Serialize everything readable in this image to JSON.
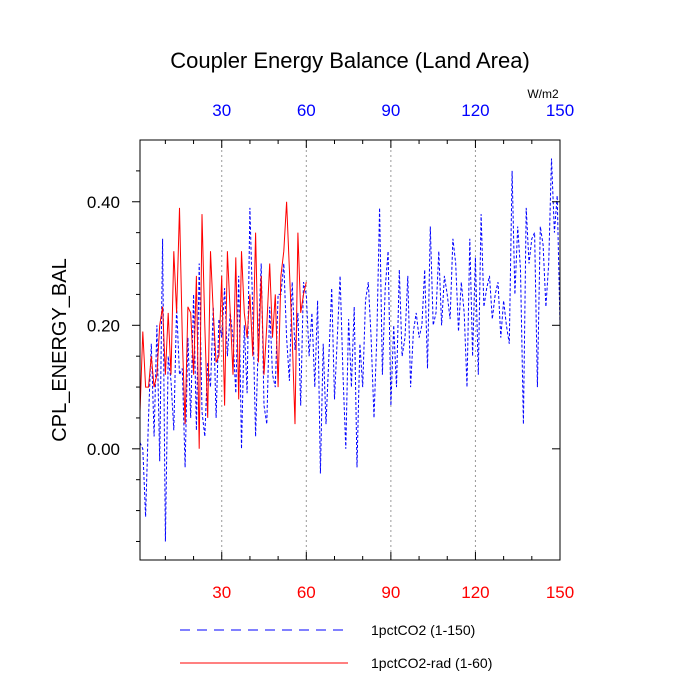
{
  "colors": {
    "series1": "#0000ff",
    "series2": "#ff0000",
    "bottom_ticks": "#ff0000",
    "top_ticks": "#0000ff",
    "grid": "#999999"
  },
  "chart_data": {
    "type": "line",
    "title": "Coupler Energy Balance (Land Area)",
    "xlabel": "",
    "ylabel": "CPL_ENERGY_BAL",
    "top_axis_units": "W/m2",
    "xlim": [
      1,
      150
    ],
    "ylim": [
      -0.18,
      0.5
    ],
    "xticks": [
      30,
      60,
      90,
      120,
      150
    ],
    "xtick_labels": [
      "30",
      "60",
      "90",
      "120",
      "150"
    ],
    "top_xtick_labels": [
      "30",
      "60",
      "90",
      "120",
      "150"
    ],
    "yticks": [
      0.0,
      0.2,
      0.4
    ],
    "ytick_labels": [
      "0.00",
      "0.20",
      "0.40"
    ],
    "grid": "vertical dotted at x ticks",
    "legend_placement": "bottom",
    "series": [
      {
        "name": "1pctCO2 (1-150)",
        "style": "dashed",
        "color": "#0000ff",
        "x": [
          1,
          2,
          3,
          4,
          5,
          6,
          7,
          8,
          9,
          10,
          11,
          12,
          13,
          14,
          15,
          16,
          17,
          18,
          19,
          20,
          21,
          22,
          23,
          24,
          25,
          26,
          27,
          28,
          29,
          30,
          31,
          32,
          33,
          34,
          35,
          36,
          37,
          38,
          39,
          40,
          41,
          42,
          43,
          44,
          45,
          46,
          47,
          48,
          49,
          50,
          51,
          52,
          53,
          54,
          55,
          56,
          57,
          58,
          59,
          60,
          61,
          62,
          63,
          64,
          65,
          66,
          67,
          68,
          69,
          70,
          71,
          72,
          73,
          74,
          75,
          76,
          77,
          78,
          79,
          80,
          81,
          82,
          83,
          84,
          85,
          86,
          87,
          88,
          89,
          90,
          91,
          92,
          93,
          94,
          95,
          96,
          97,
          98,
          99,
          100,
          101,
          102,
          103,
          104,
          105,
          106,
          107,
          108,
          109,
          110,
          111,
          112,
          113,
          114,
          115,
          116,
          117,
          118,
          119,
          120,
          121,
          122,
          123,
          124,
          125,
          126,
          127,
          128,
          129,
          130,
          131,
          132,
          133,
          134,
          135,
          136,
          137,
          138,
          139,
          140,
          141,
          142,
          143,
          144,
          145,
          146,
          147,
          148,
          149,
          150
        ],
        "y": [
          0.01,
          0.0,
          -0.11,
          0.05,
          0.17,
          0.02,
          0.2,
          -0.02,
          0.34,
          -0.15,
          0.15,
          0.11,
          0.03,
          0.23,
          0.12,
          0.13,
          -0.03,
          0.18,
          0.05,
          0.25,
          0.03,
          0.3,
          0.06,
          0.02,
          0.14,
          0.1,
          0.23,
          0.05,
          0.21,
          0.18,
          0.26,
          0.15,
          0.22,
          0.18,
          0.09,
          0.28,
          0.0,
          0.2,
          0.09,
          0.39,
          0.22,
          0.02,
          0.18,
          0.3,
          0.07,
          0.04,
          0.23,
          0.12,
          0.1,
          0.25,
          0.25,
          0.3,
          0.18,
          0.11,
          0.27,
          0.16,
          0.22,
          0.07,
          0.27,
          0.25,
          0.15,
          0.22,
          0.1,
          0.24,
          -0.04,
          0.17,
          0.04,
          0.15,
          0.26,
          0.08,
          0.18,
          0.28,
          0.12,
          0.0,
          0.21,
          0.1,
          0.23,
          -0.03,
          0.17,
          0.1,
          0.24,
          0.27,
          0.18,
          0.05,
          0.18,
          0.39,
          0.12,
          0.26,
          0.32,
          0.07,
          0.2,
          0.1,
          0.29,
          0.15,
          0.18,
          0.28,
          0.1,
          0.19,
          0.22,
          0.18,
          0.2,
          0.29,
          0.13,
          0.36,
          0.2,
          0.22,
          0.32,
          0.2,
          0.28,
          0.25,
          0.21,
          0.34,
          0.3,
          0.19,
          0.27,
          0.22,
          0.1,
          0.34,
          0.15,
          0.31,
          0.12,
          0.38,
          0.23,
          0.26,
          0.28,
          0.21,
          0.25,
          0.27,
          0.18,
          0.24,
          0.2,
          0.17,
          0.45,
          0.25,
          0.36,
          0.29,
          0.04,
          0.39,
          0.3,
          0.34,
          0.35,
          0.1,
          0.36,
          0.33,
          0.23,
          0.3,
          0.47,
          0.35,
          0.41,
          0.2
        ]
      },
      {
        "name": "1pctCO2-rad (1-60)",
        "style": "solid",
        "color": "#ff0000",
        "x": [
          1,
          2,
          3,
          4,
          5,
          6,
          7,
          8,
          9,
          10,
          11,
          12,
          13,
          14,
          15,
          16,
          17,
          18,
          19,
          20,
          21,
          22,
          23,
          24,
          25,
          26,
          27,
          28,
          29,
          30,
          31,
          32,
          33,
          34,
          35,
          36,
          37,
          38,
          39,
          40,
          41,
          42,
          43,
          44,
          45,
          46,
          47,
          48,
          49,
          50,
          51,
          52,
          53,
          54,
          55,
          56,
          57,
          58,
          59,
          60
        ],
        "y": [
          0.06,
          0.19,
          0.1,
          0.1,
          0.15,
          0.1,
          0.12,
          0.2,
          0.23,
          0.12,
          0.22,
          0.12,
          0.32,
          0.22,
          0.39,
          0.18,
          0.04,
          0.23,
          0.22,
          0.12,
          0.28,
          0.0,
          0.38,
          0.2,
          0.05,
          0.32,
          0.22,
          0.14,
          0.15,
          0.28,
          0.07,
          0.32,
          0.22,
          0.12,
          0.31,
          0.08,
          0.32,
          0.22,
          0.18,
          0.25,
          0.15,
          0.35,
          0.14,
          0.28,
          0.12,
          0.2,
          0.3,
          0.18,
          0.25,
          0.1,
          0.28,
          0.32,
          0.4,
          0.29,
          0.18,
          0.04,
          0.35,
          0.22,
          0.25,
          0.27
        ]
      }
    ]
  }
}
